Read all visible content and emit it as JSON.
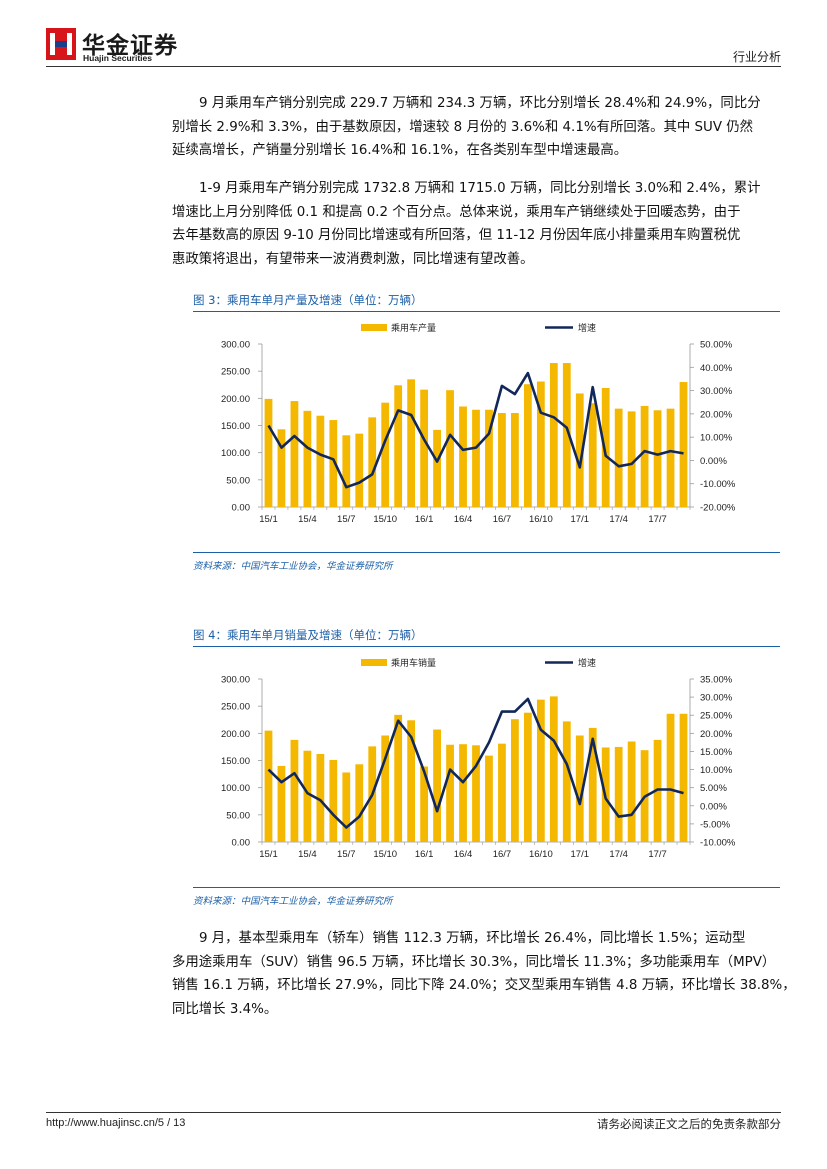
{
  "header": {
    "logo_cn": "华金证券",
    "logo_en": "Huajin Securities",
    "section": "行业分析"
  },
  "paragraphs": {
    "p1": [
      "9 月乘用车产销分别完成 229.7 万辆和 234.3 万辆，环比分别增长 28.4%和 24.9%，同比分",
      "别增长 2.9%和 3.3%，由于基数原因，增速较 8 月份的 3.6%和 4.1%有所回落。其中 SUV 仍然",
      "延续高增长，产销量分别增长 16.4%和 16.1%，在各类别车型中增速最高。"
    ],
    "p2": [
      "1-9 月乘用车产销分别完成 1732.8 万辆和 1715.0 万辆，同比分别增长 3.0%和 2.4%，累计",
      "增速比上月分别降低 0.1 和提高 0.2 个百分点。总体来说，乘用车产销继续处于回暖态势，由于",
      "去年基数高的原因 9-10 月份同比增速或有所回落，但 11-12 月份因年底小排量乘用车购置税优",
      "惠政策将退出，有望带来一波消费刺激，同比增速有望改善。"
    ],
    "p3": [
      "9 月，基本型乘用车（轿车）销售 112.3 万辆，环比增长 26.4%，同比增长 1.5%；运动型",
      "多用途乘用车（SUV）销售 96.5 万辆，环比增长 30.3%，同比增长 11.3%；多功能乘用车（MPV）",
      "销售 16.1 万辆，环比增长 27.9%，同比下降 24.0%；交叉型乘用车销售 4.8 万辆，环比增长 38.8%，",
      "同比增长 3.4%。"
    ]
  },
  "figures": [
    {
      "title": "图 3：乘用车单月产量及增速（单位：万辆）",
      "source": "资料来源：中国汽车工业协会，华金证券研究所"
    },
    {
      "title": "图 4：乘用车单月销量及增速（单位：万辆）",
      "source": "资料来源：中国汽车工业协会，华金证券研究所"
    }
  ],
  "chart_data": [
    {
      "type": "bar+line",
      "title": "图 3：乘用车单月产量及增速（单位：万辆）",
      "categories": [
        "15/1",
        "15/2",
        "15/3",
        "15/4",
        "15/5",
        "15/6",
        "15/7",
        "15/8",
        "15/9",
        "15/10",
        "15/11",
        "15/12",
        "16/1",
        "16/2",
        "16/3",
        "16/4",
        "16/5",
        "16/6",
        "16/7",
        "16/8",
        "16/9",
        "16/10",
        "16/11",
        "16/12",
        "17/1",
        "17/2",
        "17/3",
        "17/4",
        "17/5",
        "17/6",
        "17/7",
        "17/8",
        "17/9"
      ],
      "x_tick_labels": [
        "15/1",
        "15/4",
        "15/7",
        "15/10",
        "16/1",
        "16/4",
        "16/7",
        "16/10",
        "17/1",
        "17/4",
        "17/7"
      ],
      "series": [
        {
          "name": "乘用车产量",
          "axis": "left",
          "color": "#f5b800",
          "values": [
            199,
            143,
            195,
            177,
            168,
            160,
            132,
            135,
            165,
            192,
            224,
            235,
            216,
            142,
            215,
            185,
            179,
            179,
            173,
            173,
            226,
            231,
            265,
            265,
            209,
            191,
            219,
            181,
            176,
            186,
            178,
            181,
            230
          ]
        },
        {
          "name": "增速",
          "axis": "right",
          "color": "#12275a",
          "values": [
            15,
            5.5,
            10.5,
            5.5,
            2.5,
            0.5,
            -11.5,
            -9.5,
            -6,
            8.5,
            21.5,
            19.5,
            9,
            -0.5,
            11,
            4.5,
            5.5,
            11.5,
            32,
            28.5,
            37.5,
            20.5,
            18.5,
            14,
            -3,
            31.5,
            2,
            -2.5,
            -1.5,
            4,
            2.5,
            4,
            3
          ]
        }
      ],
      "y_left": {
        "min": 0,
        "max": 300,
        "ticks": [
          "0.00",
          "50.00",
          "100.00",
          "150.00",
          "200.00",
          "250.00",
          "300.00"
        ]
      },
      "y_right": {
        "min": -20,
        "max": 50,
        "ticks": [
          "-20.00%",
          "-10.00%",
          "0.00%",
          "10.00%",
          "20.00%",
          "30.00%",
          "40.00%",
          "50.00%"
        ]
      },
      "legend_position": "top"
    },
    {
      "type": "bar+line",
      "title": "图 4：乘用车单月销量及增速（单位：万辆）",
      "categories": [
        "15/1",
        "15/2",
        "15/3",
        "15/4",
        "15/5",
        "15/6",
        "15/7",
        "15/8",
        "15/9",
        "15/10",
        "15/11",
        "15/12",
        "16/1",
        "16/2",
        "16/3",
        "16/4",
        "16/5",
        "16/6",
        "16/7",
        "16/8",
        "16/9",
        "16/10",
        "16/11",
        "16/12",
        "17/1",
        "17/2",
        "17/3",
        "17/4",
        "17/5",
        "17/6",
        "17/7",
        "17/8",
        "17/9"
      ],
      "x_tick_labels": [
        "15/1",
        "15/4",
        "15/7",
        "15/10",
        "16/1",
        "16/4",
        "16/7",
        "16/10",
        "17/1",
        "17/4",
        "17/7"
      ],
      "series": [
        {
          "name": "乘用车销量",
          "axis": "left",
          "color": "#f5b800",
          "values": [
            205,
            140,
            188,
            168,
            162,
            151,
            128,
            143,
            176,
            196,
            234,
            224,
            139,
            207,
            179,
            180,
            178,
            159,
            181,
            226,
            238,
            262,
            268,
            222,
            196,
            210,
            174,
            175,
            185,
            169,
            188,
            236,
            236
          ]
        },
        {
          "name": "增速",
          "axis": "right",
          "color": "#12275a",
          "values": [
            10,
            6.5,
            9,
            3.5,
            1.5,
            -2.5,
            -6,
            -3,
            3,
            13,
            23.5,
            19,
            9.5,
            -1.5,
            10,
            6.5,
            11,
            17.5,
            26,
            26,
            29.5,
            21,
            18,
            11.5,
            0.5,
            18.5,
            2,
            -3,
            -2.5,
            2.5,
            4.5,
            4.5,
            3.5
          ]
        }
      ],
      "y_left": {
        "min": 0,
        "max": 300,
        "ticks": [
          "0.00",
          "50.00",
          "100.00",
          "150.00",
          "200.00",
          "250.00",
          "300.00"
        ]
      },
      "y_right": {
        "min": -10,
        "max": 35,
        "ticks": [
          "-10.00%",
          "-5.00%",
          "0.00%",
          "5.00%",
          "10.00%",
          "15.00%",
          "20.00%",
          "25.00%",
          "30.00%",
          "35.00%"
        ]
      },
      "legend_position": "top"
    }
  ],
  "footer": {
    "url": "http://www.huajinsc.cn/",
    "page": "5 / 13",
    "disclaimer": "请务必阅读正文之后的免责条款部分"
  }
}
